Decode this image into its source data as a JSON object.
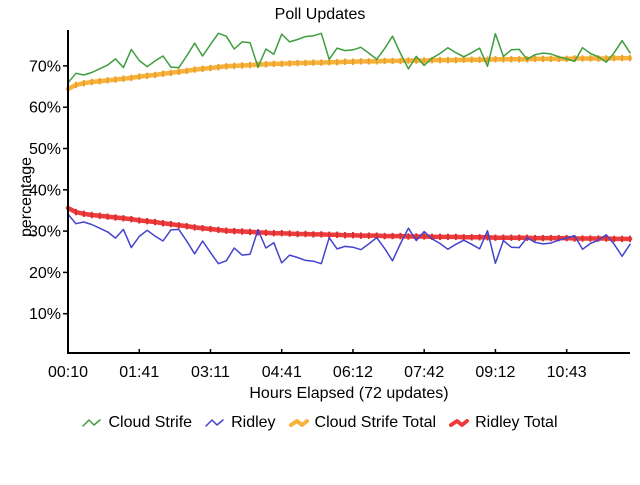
{
  "title": "Poll Updates",
  "chart_data": {
    "type": "line",
    "title": "Poll Updates",
    "xlabel": "Hours Elapsed (72 updates)",
    "ylabel": "percentage",
    "n_points": 72,
    "x_tick_labels": [
      "00:10",
      "01:41",
      "03:11",
      "04:41",
      "06:12",
      "07:42",
      "09:12",
      "10:43"
    ],
    "y_ticks": [
      10,
      20,
      30,
      40,
      50,
      60,
      70
    ],
    "y_tick_labels": [
      "10%",
      "20%",
      "30%",
      "40%",
      "50%",
      "60%",
      "70%"
    ],
    "ylim": [
      0,
      79
    ],
    "grid": false,
    "legend_position": "bottom",
    "series": [
      {
        "name": "Cloud Strife",
        "color": "#3e9e3e",
        "style": "thin",
        "values": [
          65.9,
          68.2,
          67.8,
          68.4,
          69.3,
          70.2,
          71.7,
          69.6,
          74.0,
          71.3,
          69.8,
          71.2,
          72.4,
          69.7,
          69.6,
          72.4,
          75.5,
          72.4,
          75.2,
          77.9,
          77.2,
          74.1,
          75.8,
          75.6,
          69.7,
          74.1,
          72.8,
          77.7,
          75.8,
          76.4,
          77.1,
          77.3,
          77.9,
          71.6,
          74.3,
          73.7,
          73.9,
          74.5,
          73.1,
          71.6,
          74.2,
          77.2,
          73.0,
          69.3,
          72.3,
          70.1,
          71.9,
          73.0,
          74.4,
          73.2,
          72.2,
          73.2,
          74.3,
          69.9,
          77.8,
          72.3,
          73.9,
          74.0,
          71.6,
          72.7,
          73.1,
          72.9,
          72.2,
          71.7,
          71.1,
          74.4,
          73.0,
          72.2,
          70.9,
          73.2,
          76.1,
          73.2
        ]
      },
      {
        "name": "Ridley",
        "color": "#4343cf",
        "style": "thin",
        "values": [
          34.1,
          31.8,
          32.2,
          31.6,
          30.7,
          29.8,
          28.3,
          30.4,
          26.0,
          28.7,
          30.2,
          28.8,
          27.6,
          30.3,
          30.4,
          27.6,
          24.5,
          27.6,
          24.8,
          22.1,
          22.8,
          25.9,
          24.2,
          24.4,
          30.3,
          25.9,
          27.2,
          22.3,
          24.2,
          23.6,
          22.9,
          22.7,
          22.1,
          28.4,
          25.7,
          26.3,
          26.1,
          25.5,
          26.9,
          28.4,
          25.8,
          22.8,
          27.0,
          30.7,
          27.7,
          29.9,
          28.1,
          27.0,
          25.6,
          26.8,
          27.8,
          26.8,
          25.7,
          30.1,
          22.2,
          27.7,
          26.1,
          26.0,
          28.4,
          27.3,
          26.9,
          27.1,
          27.8,
          28.3,
          28.9,
          25.6,
          27.0,
          27.8,
          29.1,
          26.8,
          23.9,
          26.8
        ]
      },
      {
        "name": "Cloud Strife Total",
        "color": "#f7b23c",
        "marker_color": "#e9a129",
        "style": "thick",
        "values": [
          64.4,
          65.4,
          65.8,
          66.1,
          66.3,
          66.5,
          66.7,
          66.9,
          67.1,
          67.4,
          67.6,
          67.8,
          68.1,
          68.3,
          68.6,
          68.8,
          69.1,
          69.3,
          69.5,
          69.7,
          69.9,
          70.0,
          70.1,
          70.2,
          70.3,
          70.4,
          70.5,
          70.5,
          70.6,
          70.7,
          70.7,
          70.8,
          70.8,
          70.9,
          70.9,
          71.0,
          71.0,
          71.1,
          71.1,
          71.1,
          71.2,
          71.2,
          71.2,
          71.3,
          71.3,
          71.3,
          71.4,
          71.4,
          71.4,
          71.4,
          71.5,
          71.5,
          71.5,
          71.5,
          71.6,
          71.6,
          71.6,
          71.6,
          71.6,
          71.7,
          71.7,
          71.7,
          71.7,
          71.7,
          71.8,
          71.8,
          71.8,
          71.8,
          71.8,
          71.9,
          71.9,
          71.9
        ]
      },
      {
        "name": "Ridley Total",
        "color": "#ee3b3b",
        "marker_color": "#d92f2f",
        "style": "thick",
        "values": [
          35.6,
          34.6,
          34.2,
          33.9,
          33.7,
          33.5,
          33.3,
          33.1,
          32.9,
          32.6,
          32.4,
          32.2,
          31.9,
          31.7,
          31.4,
          31.2,
          30.9,
          30.7,
          30.5,
          30.3,
          30.1,
          30.0,
          29.9,
          29.8,
          29.7,
          29.6,
          29.5,
          29.5,
          29.4,
          29.3,
          29.3,
          29.2,
          29.2,
          29.1,
          29.1,
          29.0,
          29.0,
          28.9,
          28.9,
          28.9,
          28.8,
          28.8,
          28.8,
          28.7,
          28.7,
          28.7,
          28.6,
          28.6,
          28.6,
          28.6,
          28.5,
          28.5,
          28.5,
          28.5,
          28.4,
          28.4,
          28.4,
          28.4,
          28.4,
          28.3,
          28.3,
          28.3,
          28.3,
          28.3,
          28.2,
          28.2,
          28.2,
          28.2,
          28.2,
          28.1,
          28.1,
          28.1
        ]
      }
    ]
  }
}
